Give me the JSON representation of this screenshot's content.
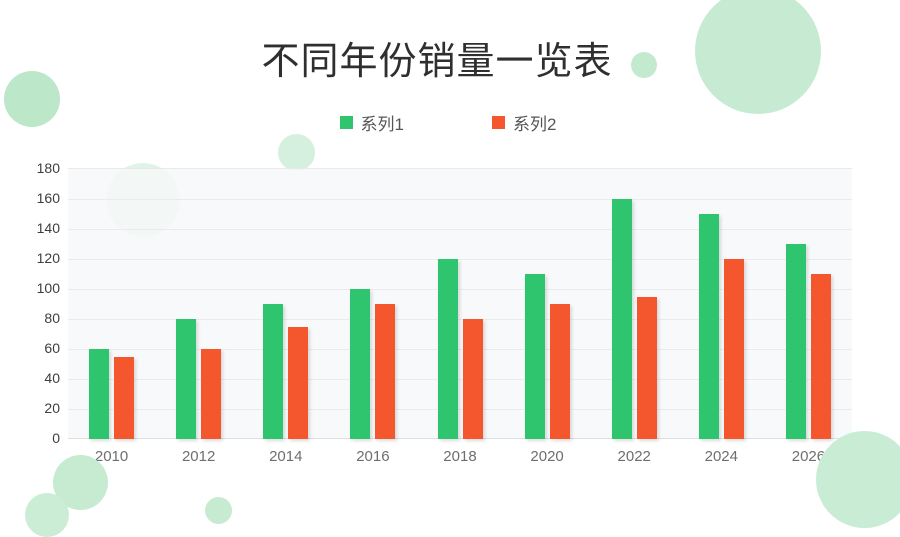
{
  "title": "不同年份销量一览表",
  "chart_data": {
    "type": "bar",
    "title": "不同年份销量一览表",
    "categories": [
      "2010",
      "2012",
      "2014",
      "2016",
      "2018",
      "2020",
      "2022",
      "2024",
      "2026"
    ],
    "series": [
      {
        "name": "系列1",
        "color": "#2EC56E",
        "values": [
          60,
          80,
          90,
          100,
          120,
          110,
          160,
          150,
          130
        ]
      },
      {
        "name": "系列2",
        "color": "#F4572E",
        "values": [
          55,
          60,
          75,
          90,
          80,
          90,
          95,
          120,
          110
        ]
      }
    ],
    "xlabel": "",
    "ylabel": "",
    "ylim": [
      0,
      180
    ],
    "yticks": [
      0,
      20,
      40,
      60,
      80,
      100,
      120,
      140,
      160,
      180
    ],
    "grid": true,
    "legend_position": "top-center",
    "plot_background": "#F7F8F9"
  },
  "colors": {
    "series1": "#2EC56E",
    "series2": "#F4572E",
    "decor_circle": "#C6EBD1",
    "gridline": "#EBEBEB",
    "axis_line": "#DEDFE0"
  }
}
